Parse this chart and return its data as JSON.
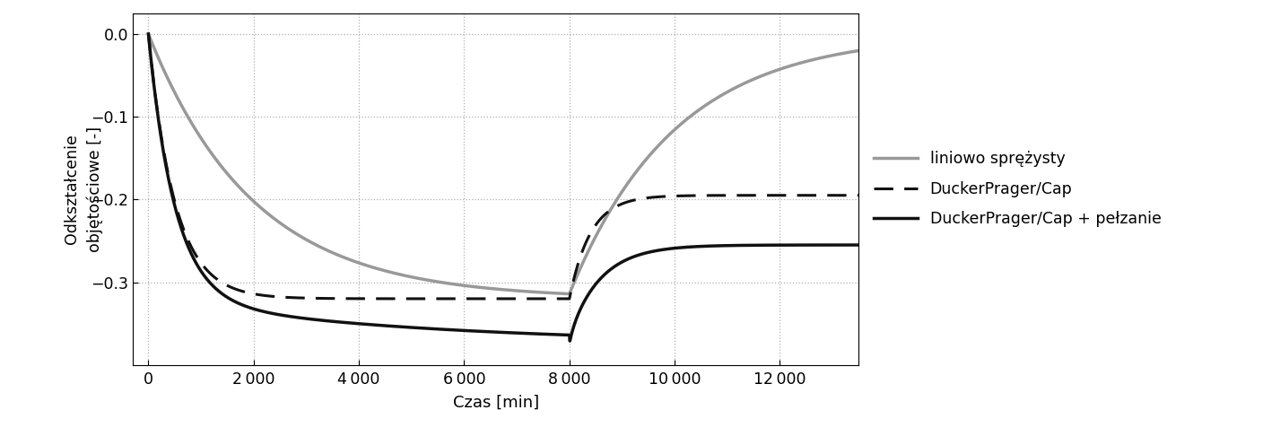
{
  "title": "",
  "xlabel": "Czas [min]",
  "ylabel": "Odkształcenie\nobjętościowe [-]",
  "xlim": [
    -300,
    13500
  ],
  "ylim": [
    -0.4,
    0.025
  ],
  "yticks": [
    0.0,
    -0.1,
    -0.2,
    -0.3
  ],
  "xticks": [
    0,
    2000,
    4000,
    6000,
    8000,
    10000,
    12000
  ],
  "grid_color": "#b0b0b0",
  "background_color": "#ffffff",
  "legend_entries": [
    "liniowo sprężysty",
    "DuckerPrager/Cap",
    "DuckerPrager/Cap + pełzanie"
  ],
  "line1_color": "#999999",
  "line2_color": "#111111",
  "line3_color": "#111111",
  "gray_load_tau": 2000,
  "gray_load_min": -0.32,
  "gray_unload_tau": 2000,
  "dp_load_tau": 500,
  "dp_load_min": -0.32,
  "dp_unload_target": -0.195,
  "dp_unload_tau": 400,
  "creep_fast_tau": 500,
  "creep_fast_min": -0.32,
  "creep_slow_tau": 5000,
  "creep_slow_add": -0.055,
  "creep_dip": -0.01,
  "creep_dip_tau": 80,
  "creep_unload_target": -0.255,
  "creep_unload_tau": 600
}
